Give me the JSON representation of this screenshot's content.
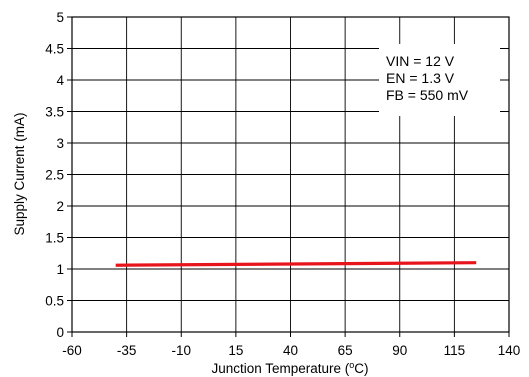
{
  "chart_data": {
    "type": "line",
    "title": "",
    "xlabel": "Junction Temperature (",
    "xlabel_unit_sup": "o",
    "xlabel_unit_tail": "C)",
    "ylabel": "Supply Current (mA)",
    "xlim": [
      -60,
      140
    ],
    "ylim": [
      0,
      5
    ],
    "x_ticks": [
      -60,
      -35,
      -10,
      15,
      40,
      65,
      90,
      115,
      140
    ],
    "y_ticks": [
      0,
      0.5,
      1,
      1.5,
      2,
      2.5,
      3,
      3.5,
      4,
      4.5,
      5
    ],
    "x_tick_labels": [
      "-60",
      "-35",
      "-10",
      "15",
      "40",
      "65",
      "90",
      "115",
      "140"
    ],
    "y_tick_labels": [
      "0",
      "0.5",
      "1",
      "1.5",
      "2",
      "2.5",
      "3",
      "3.5",
      "4",
      "4.5",
      "5"
    ],
    "grid": true,
    "series": [
      {
        "color": "#e8141b",
        "x": [
          -40,
          125
        ],
        "y": [
          1.06,
          1.1
        ]
      }
    ],
    "annotations": [
      "VIN = 12 V",
      "EN = 1.3 V",
      "FB = 550 mV"
    ]
  }
}
